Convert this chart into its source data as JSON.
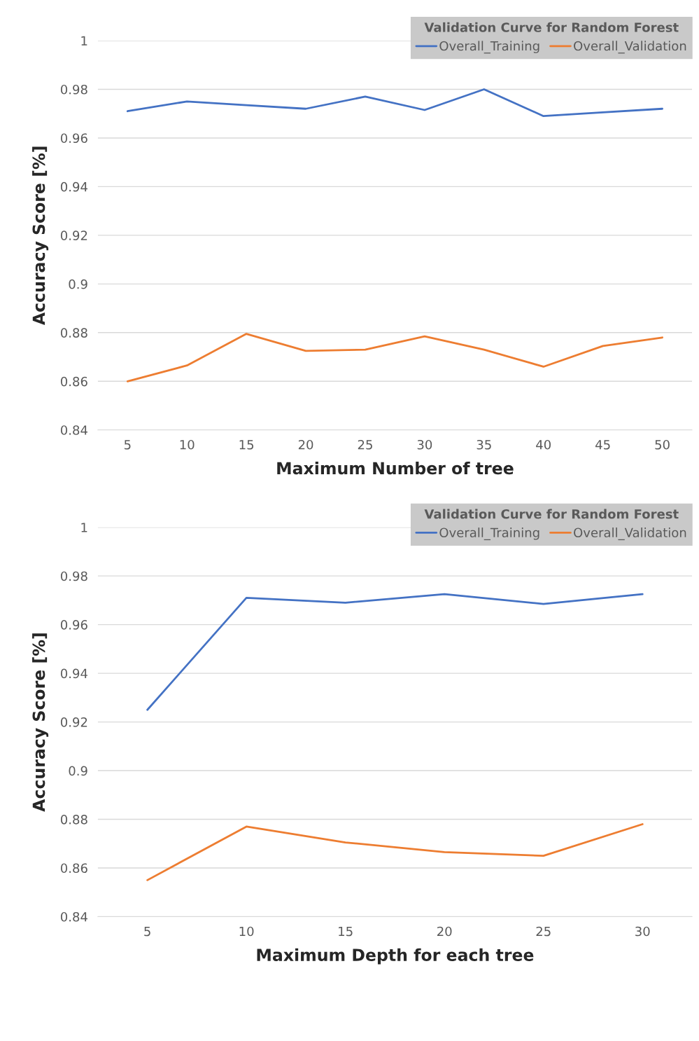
{
  "chart_data": [
    {
      "type": "line",
      "legend_title": "Validation Curve for Random Forest",
      "xlabel": "Maximum Number of tree",
      "ylabel": "Accuracy Score [%]",
      "categories": [
        "5",
        "10",
        "15",
        "20",
        "25",
        "30",
        "35",
        "40",
        "45",
        "50"
      ],
      "series": [
        {
          "name": "Overall_Training",
          "color": "#4472c4",
          "values": [
            0.971,
            0.975,
            0.9735,
            0.972,
            0.977,
            0.9715,
            0.98,
            0.969,
            0.9705,
            0.972
          ]
        },
        {
          "name": "Overall_Validation",
          "color": "#ed7d31",
          "values": [
            0.86,
            0.8665,
            0.8795,
            0.8725,
            0.873,
            0.8785,
            0.873,
            0.866,
            0.8745,
            0.878
          ]
        }
      ],
      "ylim": [
        0.84,
        1
      ],
      "yticks": [
        0.84,
        0.86,
        0.88,
        0.9,
        0.92,
        0.94,
        0.96,
        0.98,
        1
      ],
      "grid": "y",
      "legend": "top right",
      "marker": "none",
      "line_style": "solid"
    },
    {
      "type": "line",
      "legend_title": "Validation Curve for Random Forest",
      "xlabel": "Maximum Depth for each tree",
      "ylabel": "Accuracy Score [%]",
      "categories": [
        "5",
        "10",
        "15",
        "20",
        "25",
        "30"
      ],
      "series": [
        {
          "name": "Overall_Training",
          "color": "#4472c4",
          "values": [
            0.925,
            0.971,
            0.969,
            0.9725,
            0.9685,
            0.9725
          ]
        },
        {
          "name": "Overall_Validation",
          "color": "#ed7d31",
          "values": [
            0.855,
            0.877,
            0.8705,
            0.8665,
            0.865,
            0.878
          ]
        }
      ],
      "ylim": [
        0.84,
        1
      ],
      "yticks": [
        0.84,
        0.86,
        0.88,
        0.9,
        0.92,
        0.94,
        0.96,
        0.98,
        1
      ],
      "grid": "y",
      "legend": "top right",
      "marker": "none",
      "line_style": "solid"
    }
  ]
}
